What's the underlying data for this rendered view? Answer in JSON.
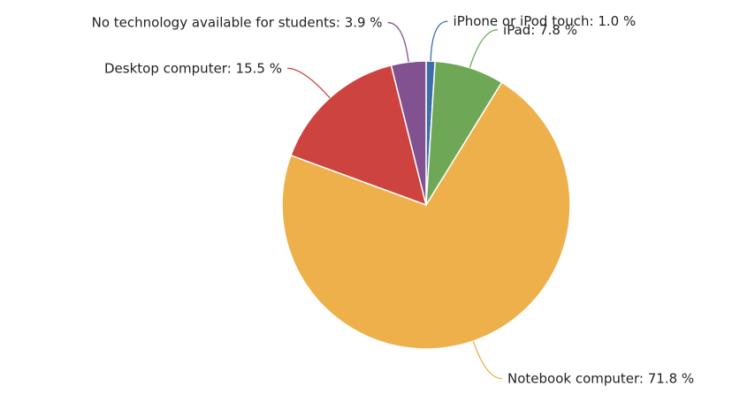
{
  "chart_data": {
    "type": "pie",
    "categories": [
      "iPhone or iPod touch",
      "iPad",
      "Notebook computer",
      "Desktop computer",
      "No technology available for students"
    ],
    "values": [
      1.0,
      7.8,
      71.8,
      15.5,
      3.9
    ],
    "value_labels": [
      "1.0 %",
      "7.8 %",
      "71.8 %",
      "15.5 %",
      "3.9 %"
    ],
    "label_separator": ": ",
    "colors": [
      "#3d6ea8",
      "#6ea856",
      "#edb04b",
      "#cd4340",
      "#825290"
    ]
  }
}
